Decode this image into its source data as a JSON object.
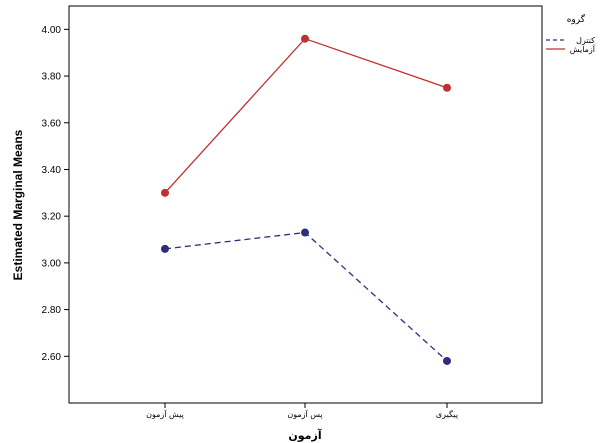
{
  "chart_data": {
    "type": "line",
    "ylabel": "Estimated Marginal Means",
    "xlabel": "آزمون",
    "categories": [
      "پیش آزمون",
      "پس آزمون",
      "پیگیری"
    ],
    "ylim": [
      2.4,
      4.1
    ],
    "yticks": [
      2.6,
      2.8,
      3.0,
      3.2,
      3.4,
      3.6,
      3.8,
      4.0
    ],
    "ytick_labels": [
      "2.60",
      "2.80",
      "3.00",
      "3.20",
      "3.40",
      "3.60",
      "3.80",
      "4.00"
    ],
    "grid": false,
    "legend": {
      "title": "گروه",
      "placement": "right"
    },
    "series": [
      {
        "name": "کنترل",
        "values": [
          3.06,
          3.13,
          2.58
        ],
        "color": "#2e2e7c",
        "dashed": true
      },
      {
        "name": "آزمایش",
        "values": [
          3.3,
          3.96,
          3.75
        ],
        "color": "#c03030",
        "dashed": false
      }
    ]
  }
}
